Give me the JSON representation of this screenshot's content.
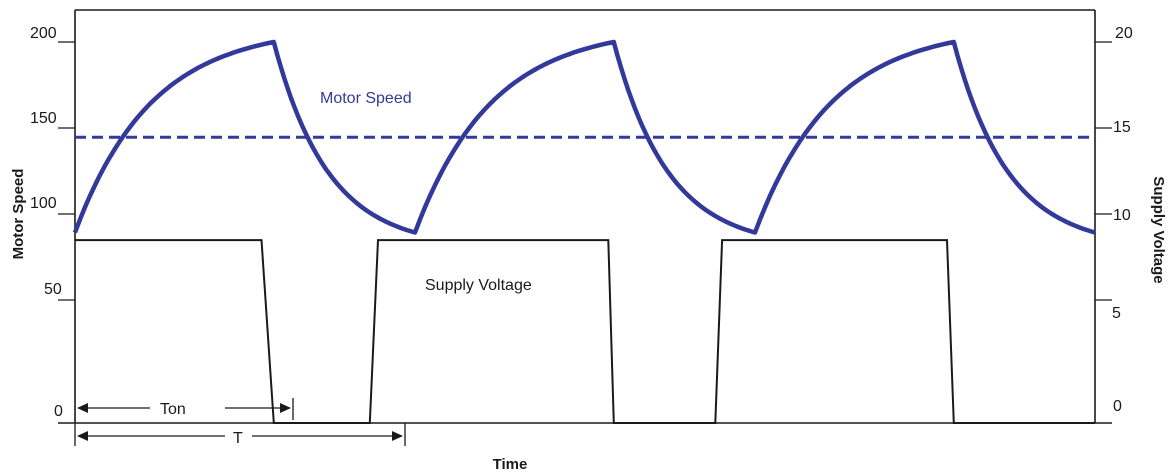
{
  "chart_data": {
    "type": "line",
    "ylabel_left": "Motor Speed",
    "ylabel_right": "Supply Voltage",
    "xlabel": "Time",
    "ylim_left": [
      0,
      200
    ],
    "ylim_right": [
      0,
      20
    ],
    "left_ticks": [
      "0",
      "50",
      "100",
      "150",
      "200"
    ],
    "right_ticks": [
      "0",
      "5",
      "10",
      "15",
      "20"
    ],
    "annotations": {
      "motor_speed": "Motor Speed",
      "supply_voltage": "Supply Voltage",
      "ton": "Ton",
      "period": "T"
    },
    "colors": {
      "motor_speed": "#33399a",
      "supply_voltage": "#1a1a1a"
    },
    "series": [
      {
        "name": "Motor Speed",
        "axis": "left",
        "x": [
          0,
          1.45,
          2.48,
          3.93,
          4.96,
          6.41,
          7.44
        ],
        "y": [
          100,
          200,
          100,
          200,
          100,
          200,
          100
        ]
      },
      {
        "name": "Supply Voltage",
        "axis": "right",
        "x": [
          0,
          1.36,
          1.45,
          2.15,
          2.21,
          3.89,
          3.93,
          4.67,
          4.72,
          6.36,
          6.41,
          7.44
        ],
        "y": [
          9.6,
          9.6,
          0,
          0,
          9.6,
          9.6,
          0,
          0,
          9.6,
          9.6,
          0,
          0
        ]
      },
      {
        "name": "Average Motor Speed",
        "axis": "left",
        "style": "dashed",
        "x": [
          0,
          7.44
        ],
        "y": [
          150,
          150
        ]
      }
    ],
    "ton": [
      0,
      1.45
    ],
    "period": [
      0,
      2.21
    ]
  }
}
